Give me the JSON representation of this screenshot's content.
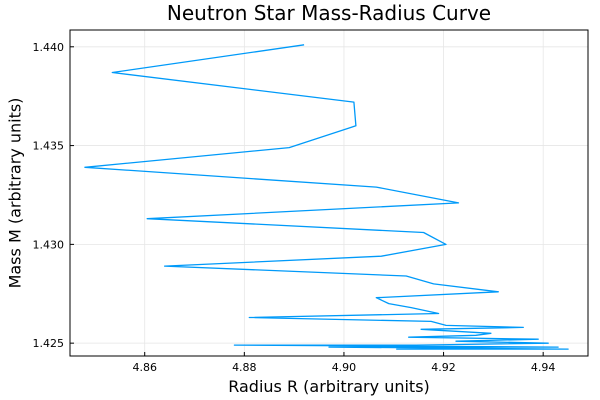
{
  "chart_data": {
    "type": "line",
    "title": "Neutron Star Mass-Radius Curve",
    "xlabel": "Radius R (arbitrary units)",
    "ylabel": "Mass M (arbitrary units)",
    "xlim": [
      4.845,
      4.949
    ],
    "ylim": [
      1.42435,
      1.44085
    ],
    "xticks": [
      4.86,
      4.88,
      4.9,
      4.92,
      4.94
    ],
    "xtick_labels": [
      "4.86",
      "4.88",
      "4.90",
      "4.92",
      "4.94"
    ],
    "yticks": [
      1.425,
      1.43,
      1.435,
      1.44
    ],
    "ytick_labels": [
      "1.425",
      "1.430",
      "1.435",
      "1.440"
    ],
    "grid": true,
    "legend": "none",
    "series": [
      {
        "color": "#009af9",
        "points": [
          [
            4.892,
            1.4401
          ],
          [
            4.8535,
            1.4387
          ],
          [
            4.902,
            1.4372
          ],
          [
            4.9024,
            1.436
          ],
          [
            4.889,
            1.4349
          ],
          [
            4.848,
            1.4339
          ],
          [
            4.9065,
            1.4329
          ],
          [
            4.923,
            1.4321
          ],
          [
            4.8605,
            1.4313
          ],
          [
            4.916,
            1.4306
          ],
          [
            4.9205,
            1.43
          ],
          [
            4.9075,
            1.4294
          ],
          [
            4.864,
            1.4289
          ],
          [
            4.9125,
            1.4284
          ],
          [
            4.918,
            1.428
          ],
          [
            4.931,
            1.4276
          ],
          [
            4.9065,
            1.4273
          ],
          [
            4.909,
            1.427
          ],
          [
            4.9135,
            1.4268
          ],
          [
            4.919,
            1.4265
          ],
          [
            4.881,
            1.4263
          ],
          [
            4.9175,
            1.4261
          ],
          [
            4.9205,
            1.4259
          ],
          [
            4.936,
            1.4258
          ],
          [
            4.9155,
            1.4257
          ],
          [
            4.9295,
            1.4255
          ],
          [
            4.9265,
            1.4254
          ],
          [
            4.913,
            1.4253
          ],
          [
            4.939,
            1.4252
          ],
          [
            4.9225,
            1.4251
          ],
          [
            4.941,
            1.425
          ],
          [
            4.9145,
            1.4249
          ],
          [
            4.878,
            1.4249
          ],
          [
            4.943,
            1.4248
          ],
          [
            4.897,
            1.4248
          ],
          [
            4.945,
            1.4247
          ],
          [
            4.9105,
            1.4247
          ]
        ]
      }
    ]
  }
}
